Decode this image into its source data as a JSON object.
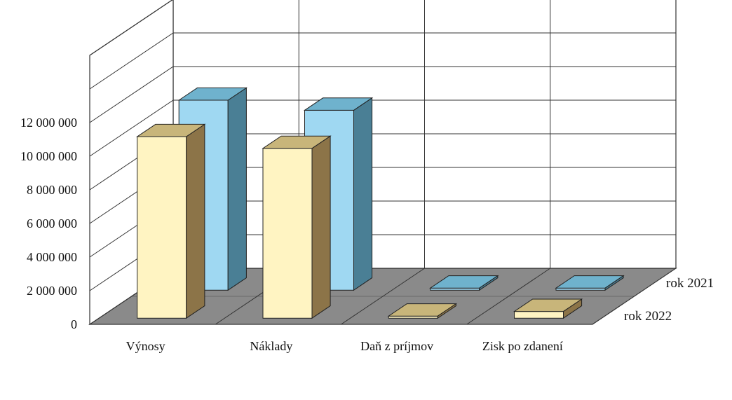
{
  "chart_data": {
    "type": "bar",
    "categories": [
      "Výnosy",
      "Náklady",
      "Daň z príjmov",
      "Zisk po zdanení"
    ],
    "series": [
      {
        "name": "rok 2021",
        "values": [
          11300000,
          10700000,
          0,
          100000
        ]
      },
      {
        "name": "rok 2022",
        "values": [
          10800000,
          10100000,
          30000,
          400000
        ]
      }
    ],
    "y_tick_labels": [
      "0",
      "2 000 000",
      "4 000 000",
      "6 000 000",
      "8 000 000",
      "10 000 000",
      "12 000 000"
    ],
    "ylim": [
      0,
      16000000
    ],
    "title": "",
    "xlabel": "",
    "ylabel": "",
    "grid": true,
    "legend": "right (as depth-axis labels)",
    "colors": {
      "rok 2021_front": "#9fd8f2",
      "rok 2021_top": "#6fb2cd",
      "rok 2021_side": "#4a7f95",
      "rok 2022_front": "#fff4c2",
      "rok 2022_top": "#c8b57a",
      "rok 2022_side": "#8c7448",
      "floor": "#8a8a8a",
      "grid": "#333333"
    }
  }
}
